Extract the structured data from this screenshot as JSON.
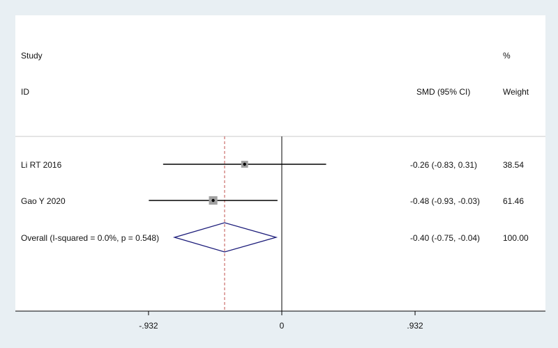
{
  "chart_data": {
    "type": "forest",
    "header": {
      "study_line1": "Study",
      "study_line2": "ID",
      "effect": "SMD (95% CI)",
      "weight_line1": "%",
      "weight_line2": "Weight"
    },
    "studies": [
      {
        "label": "Li RT 2016",
        "smd": -0.26,
        "lower": -0.83,
        "upper": 0.31,
        "ci_text": "-0.26 (-0.83, 0.31)",
        "weight": "38.54"
      },
      {
        "label": "Gao Y 2020",
        "smd": -0.48,
        "lower": -0.93,
        "upper": -0.03,
        "ci_text": "-0.48 (-0.93, -0.03)",
        "weight": "61.46"
      }
    ],
    "overall": {
      "label": "Overall  (I-squared = 0.0%, p = 0.548)",
      "smd": -0.4,
      "lower": -0.75,
      "upper": -0.04,
      "ci_text": "-0.40 (-0.75, -0.04)",
      "weight": "100.00"
    },
    "x_ticks": [
      {
        "value": -0.932,
        "label": "-.932"
      },
      {
        "value": 0,
        "label": "0"
      },
      {
        "value": 0.932,
        "label": ".932"
      }
    ],
    "null_line": 0,
    "colors": {
      "background": "#e8eff3",
      "panel": "#ffffff",
      "diamond": "#1c1c7a",
      "overall_line": "#c0504d",
      "ci_line": "#000000"
    }
  }
}
